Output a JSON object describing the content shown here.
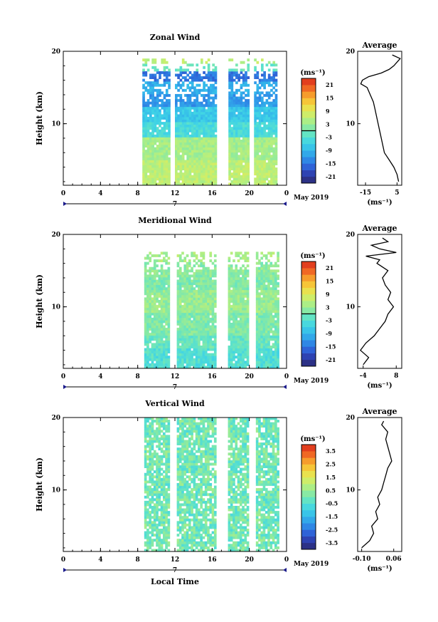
{
  "chart_data": [
    {
      "type": "heatmap",
      "title": "Zonal Wind",
      "ylabel": "Height (km)",
      "xticks": [
        "0",
        "4",
        "8",
        "12",
        "16",
        "20",
        "0"
      ],
      "yticks": [
        "20",
        "10"
      ],
      "xlim": [
        0,
        24
      ],
      "ylim": [
        1.5,
        20
      ],
      "data_start_hour": 8.5,
      "data_end_hour": 23,
      "data_top_km": 19,
      "gaps_hours": [
        11.8,
        16.8,
        17.4,
        20.3
      ],
      "day_label": "7",
      "date_label": "May 2019",
      "colorbar": {
        "unit": "(ms⁻¹)",
        "min": -24,
        "max": 24,
        "tick_labels": [
          "21",
          "15",
          "9",
          "3",
          "-3",
          "-9",
          "-15",
          "-21"
        ],
        "tick_values": [
          21,
          15,
          9,
          3,
          -3,
          -9,
          -15,
          -21
        ],
        "contour_at": 0
      },
      "profile": {
        "title": "Average",
        "xticks": [
          "-15",
          "5"
        ],
        "xtick_values": [
          -15,
          5
        ],
        "xlim": [
          -20,
          8
        ],
        "xunit": "(ms⁻¹)",
        "heights": [
          2,
          3,
          4,
          5,
          6,
          7,
          8,
          9,
          10,
          11,
          12,
          13,
          14,
          15,
          15.5,
          16,
          16.5,
          17,
          17.5,
          18,
          18.5,
          19,
          19.5
        ],
        "values": [
          6,
          5,
          3,
          0,
          -3,
          -4,
          -5,
          -6,
          -7,
          -8,
          -9,
          -10,
          -12,
          -14,
          -18,
          -17,
          -13,
          -5,
          0,
          3,
          5,
          7,
          2
        ]
      }
    },
    {
      "type": "heatmap",
      "title": "Meridional Wind",
      "ylabel": "Height (km)",
      "xticks": [
        "0",
        "4",
        "8",
        "12",
        "16",
        "20",
        "0"
      ],
      "yticks": [
        "20",
        "10"
      ],
      "xlim": [
        0,
        24
      ],
      "ylim": [
        1.5,
        20
      ],
      "data_start_hour": 8.7,
      "data_end_hour": 23,
      "data_top_km": 17.5,
      "gaps_hours": [
        11.8,
        16.8,
        17.4,
        20.3
      ],
      "day_label": "7",
      "date_label": "May 2019",
      "colorbar": {
        "unit": "(ms⁻¹)",
        "min": -24,
        "max": 24,
        "tick_labels": [
          "21",
          "15",
          "9",
          "3",
          "-3",
          "-9",
          "-15",
          "-21"
        ],
        "tick_values": [
          21,
          15,
          9,
          3,
          -3,
          -9,
          -15,
          -21
        ],
        "contour_at": 0
      },
      "profile": {
        "title": "Average",
        "xticks": [
          "-4",
          "8"
        ],
        "xtick_values": [
          -4,
          8
        ],
        "xlim": [
          -6,
          10
        ],
        "xunit": "(ms⁻¹)",
        "heights": [
          2,
          3,
          4,
          5,
          6,
          7,
          8,
          9,
          10,
          11,
          12,
          13,
          14,
          15,
          16,
          16.5,
          17,
          17.5,
          18,
          18.5,
          19,
          19.5
        ],
        "values": [
          -4,
          -2,
          -5,
          -3,
          0,
          2,
          4,
          5,
          7,
          5,
          6,
          4,
          3,
          5,
          1,
          2,
          -3,
          8,
          2,
          -1,
          5,
          3
        ]
      }
    },
    {
      "type": "heatmap",
      "title": "Vertical Wind",
      "ylabel": "Height (km)",
      "xticks": [
        "0",
        "4",
        "8",
        "12",
        "16",
        "20",
        "0"
      ],
      "yticks": [
        "20",
        "10"
      ],
      "xlim": [
        0,
        24
      ],
      "ylim": [
        1.5,
        20
      ],
      "data_start_hour": 8.7,
      "data_end_hour": 23,
      "data_top_km": 20,
      "gaps_hours": [
        11.8,
        16.8,
        17.4,
        20.3
      ],
      "day_label": "7",
      "date_label": "May 2019",
      "xlabel": "Local Time",
      "colorbar": {
        "unit": "(ms⁻¹)",
        "min": -4,
        "max": 4,
        "tick_labels": [
          "3.5",
          "2.5",
          "1.5",
          "0.5",
          "-0.5",
          "-1.5",
          "-2.5",
          "-3.5"
        ],
        "tick_values": [
          3.5,
          2.5,
          1.5,
          0.5,
          -0.5,
          -1.5,
          -2.5,
          -3.5
        ],
        "contour_at": null
      },
      "profile": {
        "title": "Average",
        "xticks": [
          "-0.10",
          "0.06"
        ],
        "xtick_values": [
          -0.1,
          0.06
        ],
        "xlim": [
          -0.12,
          0.1
        ],
        "xunit": "(ms⁻¹)",
        "heights": [
          2,
          3,
          4,
          5,
          6,
          7,
          8,
          9,
          10,
          11,
          12,
          13,
          14,
          15,
          16,
          17,
          18,
          19,
          19.5
        ],
        "values": [
          -0.1,
          -0.06,
          -0.04,
          -0.05,
          -0.02,
          -0.03,
          -0.01,
          -0.02,
          0.0,
          0.01,
          0.02,
          0.03,
          0.05,
          0.04,
          0.03,
          0.02,
          0.03,
          0.0,
          0.01
        ]
      }
    }
  ]
}
